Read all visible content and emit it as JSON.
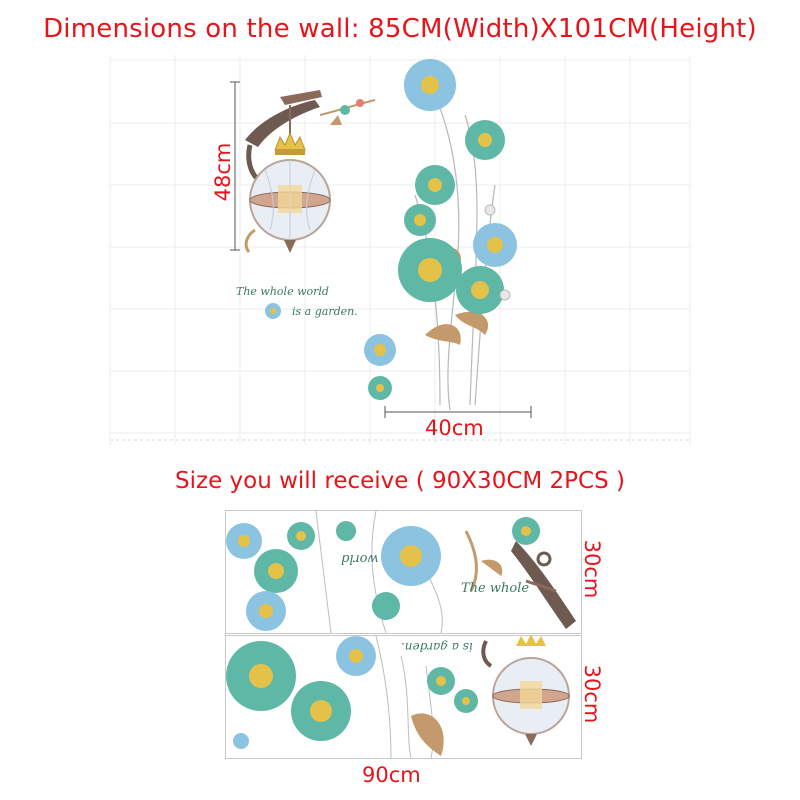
{
  "header": {
    "title": "Dimensions on the wall: 85CM(Width)X101CM(Height)"
  },
  "wall_preview": {
    "height_label": "48cm",
    "width_label": "40cm",
    "quote_line1": "The whole world",
    "quote_line2": "is a garden."
  },
  "package": {
    "title": "Size you will receive ( 90X30CM 2PCS )",
    "sheet1_height_label": "30cm",
    "sheet2_height_label": "30cm",
    "width_label": "90cm",
    "sheet1_text_world": "world",
    "sheet1_text_whole": "The whole",
    "sheet2_text_garden": "is a garden."
  },
  "colors": {
    "accent_red": "#e8141b",
    "petal_teal": "#5fb8a6",
    "petal_blue": "#8cc3e0",
    "center_yellow": "#e4c24a",
    "leaf_brown": "#c49a6c",
    "lamp_frame": "#8a6b5a"
  }
}
